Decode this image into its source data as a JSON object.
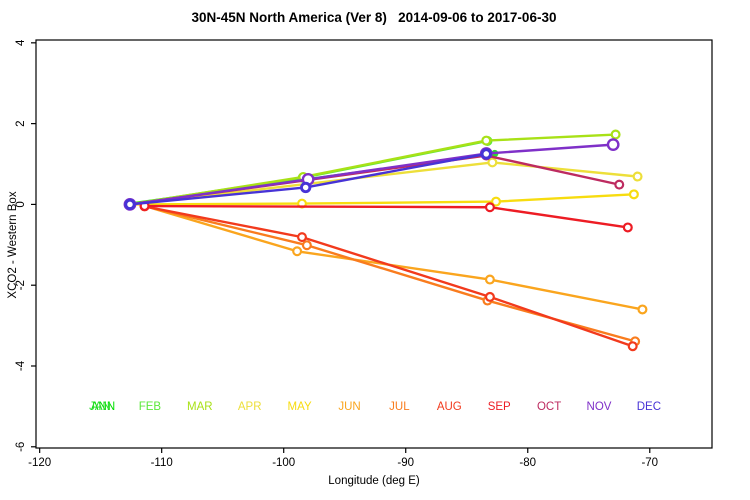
{
  "chart_data": {
    "type": "line",
    "title": "30N-45N North America (Ver 8)   2014-09-06 to 2017-06-30",
    "xlabel": "Longitude (deg E)",
    "ylabel": "XCO2 - Western Box",
    "xlim": [
      -120.3,
      -64.9
    ],
    "ylim": [
      -6.03,
      4.07
    ],
    "xticks": [
      -120,
      -110,
      -100,
      -90,
      -80,
      -70
    ],
    "yticks": [
      -6,
      -4,
      -2,
      0,
      2,
      4
    ],
    "grid": false,
    "legend_position": "inside-bottom",
    "legend": {
      "labels": [
        "JAN",
        "FEB",
        "MAR",
        "APR",
        "MAY",
        "JUN",
        "JUL",
        "AUG",
        "SEP",
        "OCT",
        "NOV",
        "DEC"
      ],
      "overprint": {
        "index": 0,
        "label": "ANN",
        "color": "#00DF00"
      }
    },
    "series": [
      {
        "name": "JAN",
        "color": "#2BDD2B",
        "marker": "filled",
        "points": [
          [
            -112.6,
            0.02
          ],
          [
            -82.7,
            1.26
          ]
        ]
      },
      {
        "name": "FEB",
        "color": "#5CE83A",
        "marker": "open",
        "points": [
          [
            -112.6,
            0.01
          ],
          [
            -98.45,
            0.66
          ],
          [
            -83.3,
            1.57
          ]
        ]
      },
      {
        "name": "MAR",
        "color": "#A8E117",
        "marker": "open",
        "points": [
          [
            -112.6,
            0.0
          ],
          [
            -98.4,
            0.68
          ],
          [
            -83.4,
            1.58
          ],
          [
            -72.8,
            1.73
          ]
        ]
      },
      {
        "name": "APR",
        "color": "#EDDF3A",
        "marker": "open",
        "points": [
          [
            -112.6,
            0.0
          ],
          [
            -82.9,
            1.04
          ],
          [
            -71.0,
            0.69
          ]
        ]
      },
      {
        "name": "MAY",
        "color": "#F7DC0F",
        "marker": "open",
        "points": [
          [
            -112.6,
            0.0
          ],
          [
            -98.5,
            0.02
          ],
          [
            -82.6,
            0.07
          ],
          [
            -71.3,
            0.25
          ]
        ]
      },
      {
        "name": "JUN",
        "color": "#FAA51E",
        "marker": "open",
        "points": [
          [
            -111.4,
            -0.04
          ],
          [
            -98.9,
            -1.16
          ],
          [
            -83.1,
            -1.86
          ],
          [
            -70.6,
            -2.6
          ]
        ]
      },
      {
        "name": "JUL",
        "color": "#F97C1E",
        "marker": "open",
        "points": [
          [
            -111.4,
            -0.04
          ],
          [
            -98.1,
            -1.01
          ],
          [
            -83.3,
            -2.38
          ],
          [
            -71.2,
            -3.39
          ]
        ]
      },
      {
        "name": "AUG",
        "color": "#F23A1D",
        "marker": "open",
        "points": [
          [
            -111.4,
            -0.05
          ],
          [
            -98.5,
            -0.81
          ],
          [
            -83.1,
            -2.29
          ],
          [
            -71.4,
            -3.51
          ]
        ]
      },
      {
        "name": "SEP",
        "color": "#ED1C24",
        "marker": "open",
        "points": [
          [
            -111.4,
            -0.04
          ],
          [
            -83.1,
            -0.07
          ],
          [
            -71.8,
            -0.57
          ]
        ]
      },
      {
        "name": "OCT",
        "color": "#BD2B60",
        "marker": "open",
        "points": [
          [
            -112.6,
            0.0
          ],
          [
            -83.4,
            1.21
          ],
          [
            -72.5,
            0.49
          ]
        ]
      },
      {
        "name": "NOV",
        "color": "#7F30C8",
        "marker": "open-large",
        "points": [
          [
            -112.6,
            0.0
          ],
          [
            -98.0,
            0.62
          ],
          [
            -83.4,
            1.26
          ],
          [
            -73.0,
            1.48
          ]
        ]
      },
      {
        "name": "DEC",
        "color": "#4733D6",
        "marker": "open-bold",
        "points": [
          [
            -112.6,
            0.0
          ],
          [
            -98.2,
            0.42
          ],
          [
            -83.4,
            1.25
          ]
        ]
      }
    ]
  }
}
